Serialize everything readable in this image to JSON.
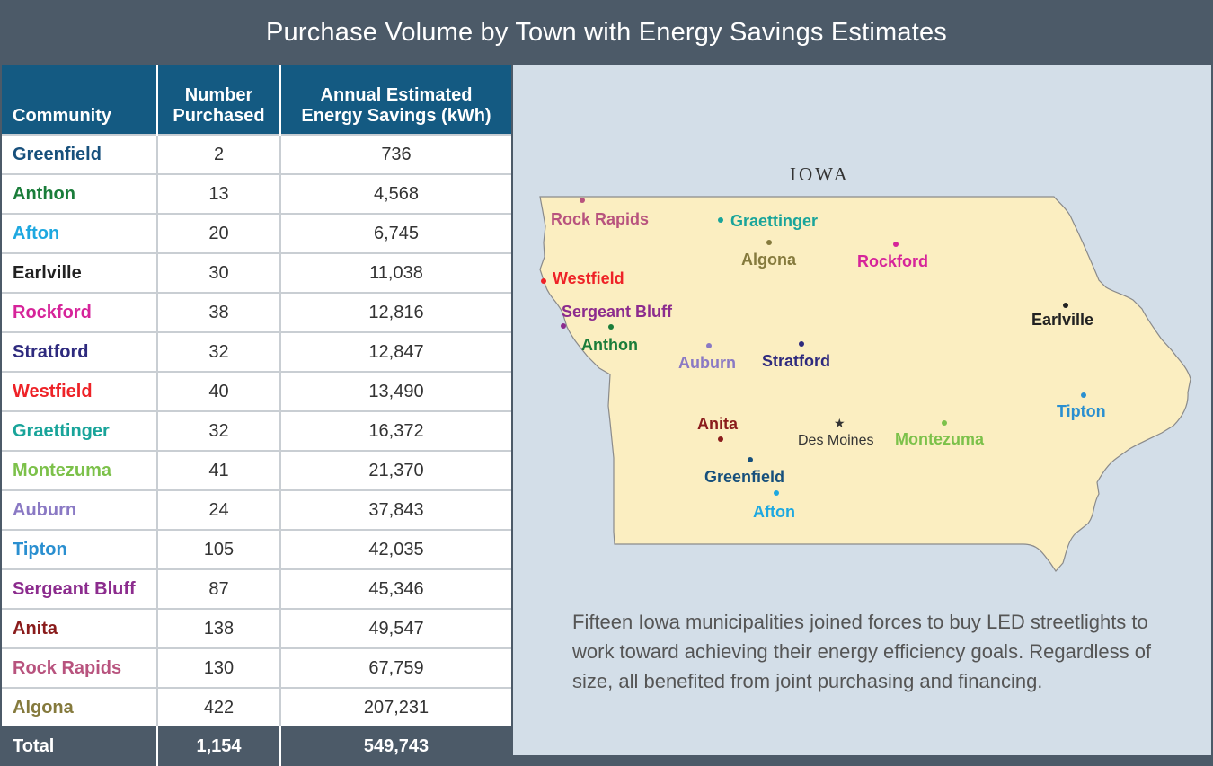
{
  "title": "Purchase Volume by Town with Energy Savings Estimates",
  "table": {
    "headers": {
      "community": "Community",
      "number_line1": "Number",
      "number_line2": "Purchased",
      "savings_line1": "Annual Estimated",
      "savings_line2": "Energy Savings (kWh)"
    },
    "rows": [
      {
        "community": "Greenfield",
        "number": "2",
        "savings": "736",
        "color": "#17507c"
      },
      {
        "community": "Anthon",
        "number": "13",
        "savings": "4,568",
        "color": "#1a7d3a"
      },
      {
        "community": "Afton",
        "number": "20",
        "savings": "6,745",
        "color": "#1ea8e0"
      },
      {
        "community": "Earlville",
        "number": "30",
        "savings": "11,038",
        "color": "#222222"
      },
      {
        "community": "Rockford",
        "number": "38",
        "savings": "12,816",
        "color": "#d6249a"
      },
      {
        "community": "Stratford",
        "number": "32",
        "savings": "12,847",
        "color": "#2e2a7e"
      },
      {
        "community": "Westfield",
        "number": "40",
        "savings": "13,490",
        "color": "#ee2227"
      },
      {
        "community": "Graettinger",
        "number": "32",
        "savings": "16,372",
        "color": "#19a49a"
      },
      {
        "community": "Montezuma",
        "number": "41",
        "savings": "21,370",
        "color": "#7cc14a"
      },
      {
        "community": "Auburn",
        "number": "24",
        "savings": "37,843",
        "color": "#8a79c4"
      },
      {
        "community": "Tipton",
        "number": "105",
        "savings": "42,035",
        "color": "#2a8fd0"
      },
      {
        "community": "Sergeant Bluff",
        "number": "87",
        "savings": "45,346",
        "color": "#8c2c8e"
      },
      {
        "community": "Anita",
        "number": "138",
        "savings": "49,547",
        "color": "#8a1c1c"
      },
      {
        "community": "Rock Rapids",
        "number": "130",
        "savings": "67,759",
        "color": "#b8537e"
      },
      {
        "community": "Algona",
        "number": "422",
        "savings": "207,231",
        "color": "#857a3d"
      }
    ],
    "total": {
      "label": "Total",
      "number": "1,154",
      "savings": "549,743"
    }
  },
  "map": {
    "state_label": "IOWA",
    "capital": "Des Moines",
    "caption": "Fifteen Iowa municipalities joined forces to buy LED streetlights to work toward achieving their energy efficiency goals. Regardless of size, all benefited from joint purchasing and financing."
  },
  "chart_data": {
    "type": "table",
    "title": "Purchase Volume by Town with Energy Savings Estimates",
    "columns": [
      "Community",
      "Number Purchased",
      "Annual Estimated Energy Savings (kWh)"
    ],
    "rows": [
      [
        "Greenfield",
        2,
        736
      ],
      [
        "Anthon",
        13,
        4568
      ],
      [
        "Afton",
        20,
        6745
      ],
      [
        "Earlville",
        30,
        11038
      ],
      [
        "Rockford",
        38,
        12816
      ],
      [
        "Stratford",
        32,
        12847
      ],
      [
        "Westfield",
        40,
        13490
      ],
      [
        "Graettinger",
        32,
        16372
      ],
      [
        "Montezuma",
        41,
        21370
      ],
      [
        "Auburn",
        24,
        37843
      ],
      [
        "Tipton",
        105,
        42035
      ],
      [
        "Sergeant Bluff",
        87,
        45346
      ],
      [
        "Anita",
        138,
        49547
      ],
      [
        "Rock Rapids",
        130,
        67759
      ],
      [
        "Algona",
        422,
        207231
      ]
    ],
    "total": [
      "Total",
      1154,
      549743
    ]
  }
}
